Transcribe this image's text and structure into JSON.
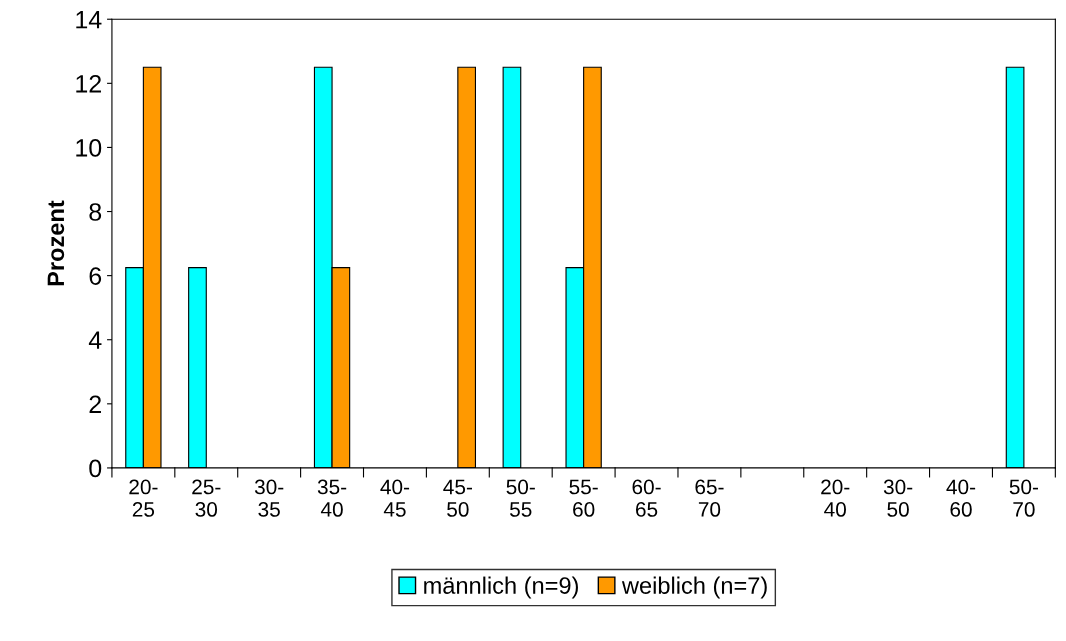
{
  "chart_data": {
    "type": "bar",
    "ylabel": "Prozent",
    "categories": [
      "20-\n25",
      "25-\n30",
      "30-\n35",
      "35-\n40",
      "40-\n45",
      "45-\n50",
      "50-\n55",
      "55-\n60",
      "60-\n65",
      "65-\n70",
      null,
      "20-\n40",
      "30-\n50",
      "40-\n60",
      "50-\n70"
    ],
    "series": [
      {
        "name": "männlich (n=9)",
        "color": "#00ffff",
        "values": [
          6.25,
          6.25,
          null,
          12.5,
          null,
          null,
          12.5,
          6.25,
          null,
          null,
          null,
          null,
          null,
          null,
          12.5
        ]
      },
      {
        "name": "weiblich (n=7)",
        "color": "#ff9900",
        "values": [
          12.5,
          null,
          null,
          6.25,
          null,
          12.5,
          null,
          12.5,
          null,
          null,
          null,
          null,
          null,
          null,
          null
        ]
      }
    ],
    "ylim": [
      0,
      14
    ],
    "yticks": [
      0,
      2,
      4,
      6,
      8,
      10,
      12,
      14
    ],
    "grid": false,
    "legend": "bottom"
  }
}
